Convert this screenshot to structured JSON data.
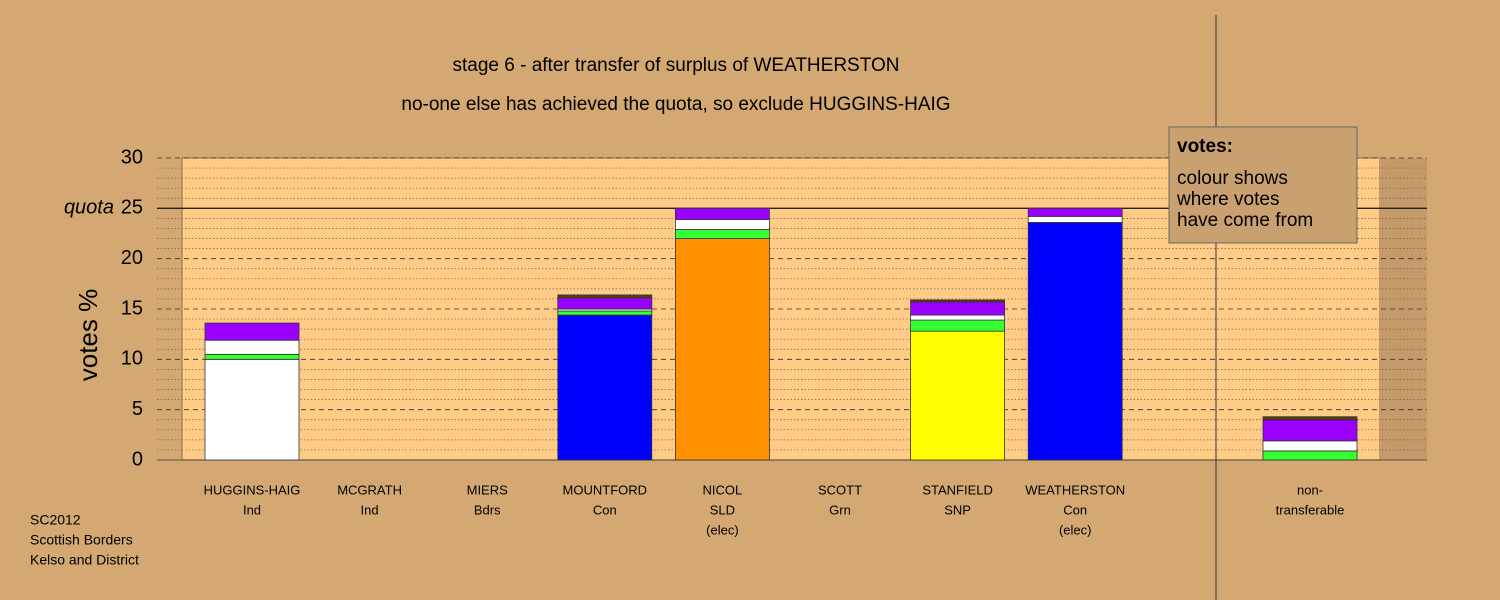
{
  "chart_data": {
    "type": "bar",
    "stacked": true,
    "title": "stage 6 - after transfer of surplus of WEATHERSTON",
    "subtitle": "no-one else has achieved the quota, so exclude HUGGINS-HAIG",
    "y_label": "votes %",
    "categories": [
      [
        "HUGGINS-HAIG",
        "Ind"
      ],
      [
        "MCGRATH",
        "Ind"
      ],
      [
        "MIERS",
        "Bdrs"
      ],
      [
        "MOUNTFORD",
        "Con"
      ],
      [
        "NICOL",
        "SLD",
        "(elec)"
      ],
      [
        "SCOTT",
        "Grn"
      ],
      [
        "STANFIELD",
        "SNP"
      ],
      [
        "WEATHERSTON",
        "Con",
        "(elec)"
      ],
      [
        "non-",
        "transferable"
      ]
    ],
    "series": [
      {
        "color": "#ffffff",
        "values": [
          10,
          0,
          0,
          0,
          0,
          0,
          0,
          0,
          0
        ]
      },
      {
        "color": "#0000ff",
        "values": [
          0,
          0,
          0,
          14.4,
          0,
          0,
          0,
          23.6,
          0
        ]
      },
      {
        "color": "#ff9000",
        "values": [
          0,
          0,
          0,
          0,
          22,
          0,
          0,
          0,
          0
        ]
      },
      {
        "color": "#ffff00",
        "values": [
          0,
          0,
          0,
          0,
          0,
          0,
          12.8,
          0,
          0
        ]
      },
      {
        "color": "#33ff33",
        "values": [
          0.5,
          0,
          0,
          0.4,
          0.9,
          0,
          1.1,
          0,
          0.9
        ]
      },
      {
        "color": "#ffffff",
        "values": [
          1.4,
          0,
          0,
          0.2,
          1.0,
          0,
          0.5,
          0.6,
          1.0
        ]
      },
      {
        "color": "#9900ff",
        "values": [
          1.7,
          0,
          0,
          1.1,
          1.1,
          0,
          1.3,
          0.8,
          2.1
        ]
      },
      {
        "color": "#5a3a10",
        "values": [
          0,
          0,
          0,
          0.3,
          0,
          0,
          0.2,
          0,
          0.3
        ]
      }
    ],
    "ylim": [
      0,
      30
    ],
    "yticks": [
      0,
      5,
      10,
      15,
      20,
      25,
      30
    ],
    "minor_yticks": [
      1,
      2,
      3,
      4,
      6,
      7,
      8,
      9,
      11,
      12,
      13,
      14,
      16,
      17,
      18,
      19,
      21,
      22,
      23,
      24,
      26,
      27,
      28,
      29
    ],
    "quota": 25,
    "quota_label": "quota",
    "legend_title": "votes:",
    "legend_text": [
      "colour shows",
      "where votes",
      "have come from"
    ],
    "footer": [
      "SC2012",
      "Scottish Borders",
      "Kelso and District"
    ]
  }
}
